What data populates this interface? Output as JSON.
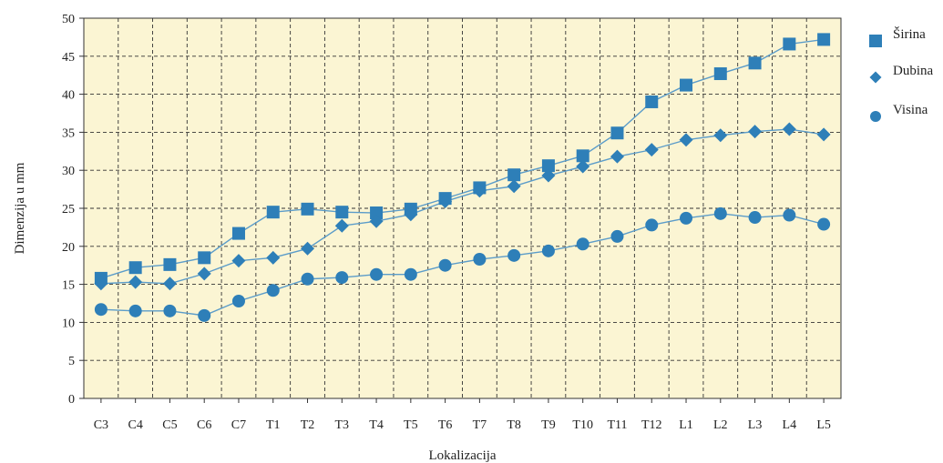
{
  "chart_data": {
    "type": "line",
    "xlabel": "Lokalizacija",
    "ylabel": "Dimenzija u mm",
    "ylim": [
      0,
      50
    ],
    "yticks": [
      "0",
      "5",
      "10",
      "15",
      "20",
      "25",
      "30",
      "35",
      "40",
      "45",
      "50"
    ],
    "categories": [
      "C3",
      "C4",
      "C5",
      "C6",
      "C7",
      "T1",
      "T2",
      "T3",
      "T4",
      "T5",
      "T6",
      "T7",
      "T8",
      "T9",
      "T10",
      "T11",
      "T12",
      "L1",
      "L2",
      "L3",
      "L4",
      "L5"
    ],
    "grid": true,
    "legend_position": "right",
    "background": "#fbf5d3",
    "series_color": "#2e7fb8",
    "line_color": "#5b9cc9",
    "series": [
      {
        "name": "Širina",
        "marker": "square",
        "values": [
          15.8,
          17.2,
          17.6,
          18.5,
          21.7,
          24.5,
          24.9,
          24.5,
          24.4,
          24.9,
          26.3,
          27.7,
          29.4,
          30.6,
          31.9,
          34.9,
          39.0,
          41.2,
          42.7,
          44.1,
          46.6,
          47.2
        ]
      },
      {
        "name": "Dubina",
        "marker": "diamond",
        "values": [
          15.1,
          15.3,
          15.1,
          16.4,
          18.1,
          18.5,
          19.7,
          22.7,
          23.3,
          24.2,
          25.9,
          27.3,
          27.9,
          29.3,
          30.5,
          31.8,
          32.7,
          34.0,
          34.6,
          35.1,
          35.4,
          34.7
        ]
      },
      {
        "name": "Visina",
        "marker": "circle",
        "values": [
          11.7,
          11.5,
          11.5,
          10.9,
          12.8,
          14.2,
          15.7,
          15.9,
          16.3,
          16.3,
          17.5,
          18.3,
          18.8,
          19.4,
          20.3,
          21.3,
          22.8,
          23.7,
          24.3,
          23.8,
          24.1,
          22.9
        ]
      }
    ]
  }
}
